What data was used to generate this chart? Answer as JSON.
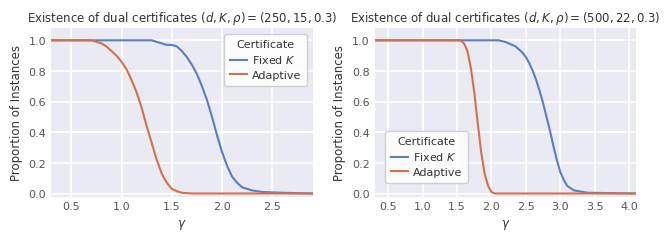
{
  "plots": [
    {
      "title": "Existence of dual certificates $(d, K, \\rho) = (250, 15, 0.3)$",
      "xlim": [
        0.3,
        2.9
      ],
      "xticks": [
        0.5,
        1.0,
        1.5,
        2.0,
        2.5
      ],
      "fixed_K": {
        "x": [
          0.3,
          0.6,
          0.7,
          0.8,
          0.9,
          1.0,
          1.1,
          1.2,
          1.3,
          1.35,
          1.4,
          1.45,
          1.5,
          1.55,
          1.6,
          1.65,
          1.7,
          1.75,
          1.8,
          1.85,
          1.9,
          1.95,
          2.0,
          2.05,
          2.1,
          2.15,
          2.2,
          2.3,
          2.4,
          2.6,
          2.9
        ],
        "y": [
          1.0,
          1.0,
          1.0,
          1.0,
          1.0,
          1.0,
          1.0,
          1.0,
          1.0,
          0.99,
          0.98,
          0.97,
          0.97,
          0.96,
          0.93,
          0.89,
          0.84,
          0.78,
          0.7,
          0.61,
          0.5,
          0.38,
          0.27,
          0.18,
          0.11,
          0.07,
          0.04,
          0.02,
          0.01,
          0.005,
          0.0
        ]
      },
      "adaptive": {
        "x": [
          0.3,
          0.7,
          0.75,
          0.8,
          0.85,
          0.9,
          0.95,
          1.0,
          1.05,
          1.1,
          1.15,
          1.2,
          1.25,
          1.3,
          1.35,
          1.4,
          1.45,
          1.5,
          1.55,
          1.6,
          1.7,
          2.9
        ],
        "y": [
          1.0,
          1.0,
          0.99,
          0.98,
          0.96,
          0.93,
          0.9,
          0.86,
          0.81,
          0.74,
          0.66,
          0.56,
          0.44,
          0.33,
          0.22,
          0.13,
          0.07,
          0.03,
          0.015,
          0.005,
          0.0,
          0.0
        ]
      },
      "color_fixed": "#5b7fbe",
      "color_adaptive": "#d4714a",
      "legend_loc": "upper right",
      "show_ylabel": true
    },
    {
      "title": "Existence of dual certificates $(d, K, \\rho) = (500, 22, 0.3)$",
      "xlim": [
        0.3,
        4.1
      ],
      "xticks": [
        0.5,
        1.0,
        1.5,
        2.0,
        2.5,
        3.0,
        3.5,
        4.0
      ],
      "fixed_K": {
        "x": [
          0.3,
          1.8,
          1.9,
          2.0,
          2.1,
          2.2,
          2.25,
          2.3,
          2.35,
          2.4,
          2.45,
          2.5,
          2.55,
          2.6,
          2.65,
          2.7,
          2.75,
          2.8,
          2.85,
          2.9,
          2.95,
          3.0,
          3.05,
          3.1,
          3.2,
          3.4,
          4.1
        ],
        "y": [
          1.0,
          1.0,
          1.0,
          1.0,
          1.0,
          0.99,
          0.98,
          0.97,
          0.96,
          0.94,
          0.92,
          0.89,
          0.85,
          0.8,
          0.74,
          0.67,
          0.59,
          0.5,
          0.41,
          0.31,
          0.22,
          0.14,
          0.09,
          0.05,
          0.02,
          0.005,
          0.0
        ]
      },
      "adaptive": {
        "x": [
          0.3,
          1.55,
          1.6,
          1.65,
          1.7,
          1.75,
          1.8,
          1.85,
          1.9,
          1.95,
          2.0,
          2.05,
          4.1
        ],
        "y": [
          1.0,
          1.0,
          0.98,
          0.93,
          0.82,
          0.66,
          0.46,
          0.27,
          0.13,
          0.05,
          0.01,
          0.0,
          0.0
        ]
      },
      "color_fixed": "#5b7fbe",
      "color_adaptive": "#d4714a",
      "legend_loc": "center left",
      "show_ylabel": true
    }
  ],
  "ylabel": "Proportion of Instances",
  "xlabel": "$\\gamma$",
  "ylim": [
    -0.02,
    1.08
  ],
  "yticks": [
    0.0,
    0.2,
    0.4,
    0.6,
    0.8,
    1.0
  ],
  "legend_title": "Certificate",
  "legend_fixed": "Fixed $K$",
  "legend_adaptive": "Adaptive",
  "background_color": "#eaeaf2",
  "grid_color": "#ffffff",
  "title_fontsize": 8.5,
  "label_fontsize": 8.5,
  "tick_fontsize": 8,
  "legend_fontsize": 8
}
